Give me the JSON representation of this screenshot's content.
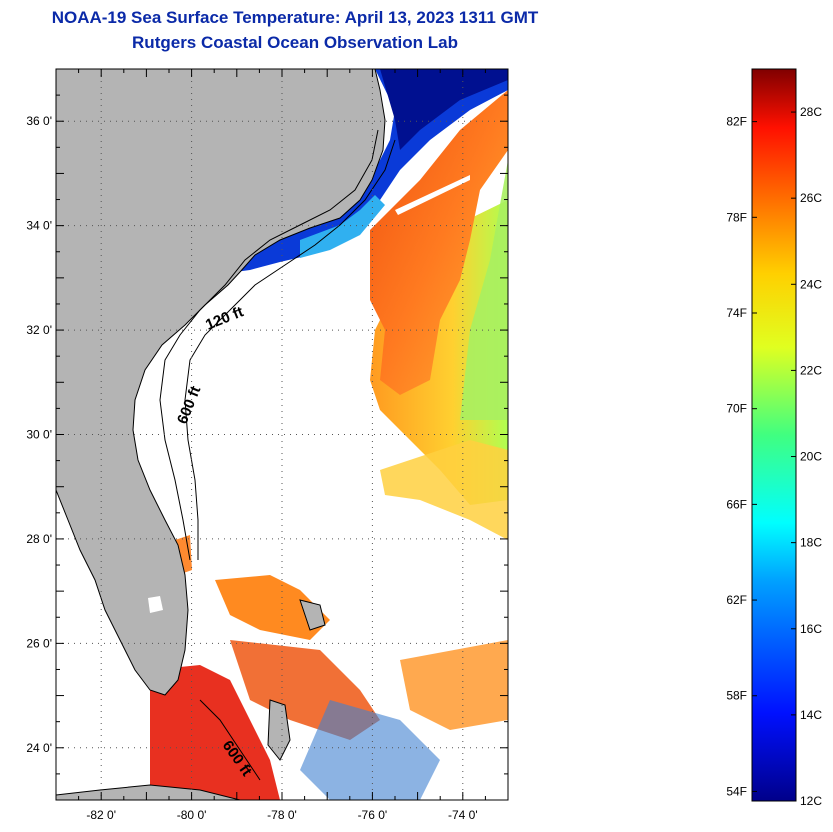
{
  "title": {
    "line1": "NOAA-19 Sea Surface Temperature:  April 13, 2023 1311 GMT",
    "line2": "Rutgers Coastal Ocean Observation Lab"
  },
  "map": {
    "lat_range": [
      23,
      37
    ],
    "lon_range": [
      -83,
      -73
    ],
    "lat_ticks": [
      "24 0'",
      "26 0'",
      "28 0'",
      "30 0'",
      "32 0'",
      "34 0'",
      "36 0'"
    ],
    "lon_ticks": [
      "-82 0'",
      "-80 0'",
      "-78 0'",
      "-76 0'",
      "-74 0'"
    ],
    "contours": [
      {
        "label": "120 ft"
      },
      {
        "label": "600 ft"
      },
      {
        "label": "600 ft"
      }
    ],
    "colors": {
      "land": "#b4b4b4",
      "no_data": "#ffffff",
      "cold_shelf": "#0a1ea8",
      "gulf_stream": "#e64a10",
      "offshore": "#ffa020"
    }
  },
  "colorbar": {
    "f_labels": [
      "82F",
      "78F",
      "74F",
      "70F",
      "66F",
      "62F",
      "58F",
      "54F"
    ],
    "c_labels": [
      "28C",
      "26C",
      "24C",
      "22C",
      "20C",
      "18C",
      "16C",
      "14C",
      "12C"
    ],
    "range_c": [
      12,
      29
    ]
  }
}
